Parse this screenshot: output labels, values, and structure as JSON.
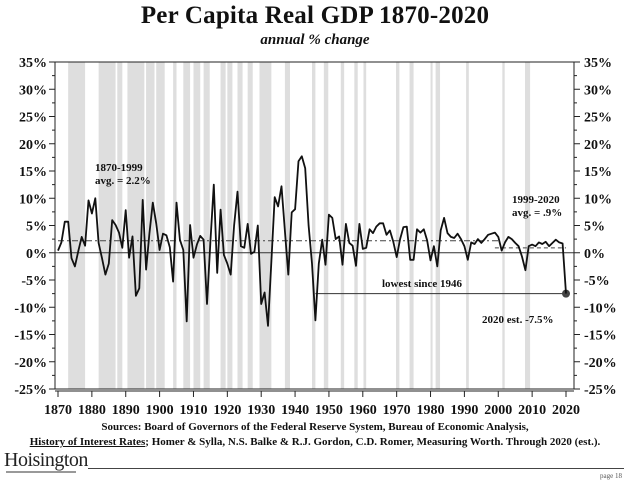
{
  "page": {
    "sources_line1": "Sources: Board of Governors of the Federal Reserve System, Bureau of Economic Analysis,",
    "sources_link": "History of Interest Rates",
    "sources_line2_rest": "; Homer & Sylla, N.S. Balke & R.J. Gordon, C.D. Romer, Measuring Worth. Through 2020 (est.).",
    "logo": "Hoisington",
    "page_number": "page 18"
  },
  "chart_data": {
    "type": "line",
    "title": "Per Capita Real GDP 1870-2020",
    "subtitle": "annual % change",
    "xlabel": "",
    "ylabel": "",
    "xlim": [
      1869,
      2022
    ],
    "ylim": [
      -25,
      35
    ],
    "x_ticks": [
      1870,
      1880,
      1890,
      1900,
      1910,
      1920,
      1930,
      1940,
      1950,
      1960,
      1970,
      1980,
      1990,
      2000,
      2010,
      2020
    ],
    "y_ticks": [
      -25,
      -20,
      -15,
      -10,
      -5,
      0,
      5,
      10,
      15,
      20,
      25,
      30,
      35
    ],
    "y_tick_labels": [
      "-25%",
      "-20%",
      "-15%",
      "-10%",
      "-5%",
      "0%",
      "5%",
      "10%",
      "15%",
      "20%",
      "25%",
      "30%",
      "35%"
    ],
    "y_axis_both_sides": true,
    "grid": false,
    "legend": "none",
    "series": [
      {
        "name": "Per capita real GDP annual % change",
        "x": [
          1870,
          1871,
          1872,
          1873,
          1874,
          1875,
          1876,
          1877,
          1878,
          1879,
          1880,
          1881,
          1882,
          1883,
          1884,
          1885,
          1886,
          1887,
          1888,
          1889,
          1890,
          1891,
          1892,
          1893,
          1894,
          1895,
          1896,
          1897,
          1898,
          1899,
          1900,
          1901,
          1902,
          1903,
          1904,
          1905,
          1906,
          1907,
          1908,
          1909,
          1910,
          1911,
          1912,
          1913,
          1914,
          1915,
          1916,
          1917,
          1918,
          1919,
          1920,
          1921,
          1922,
          1923,
          1924,
          1925,
          1926,
          1927,
          1928,
          1929,
          1930,
          1931,
          1932,
          1933,
          1934,
          1935,
          1936,
          1937,
          1938,
          1939,
          1940,
          1941,
          1942,
          1943,
          1944,
          1945,
          1946,
          1947,
          1948,
          1949,
          1950,
          1951,
          1952,
          1953,
          1954,
          1955,
          1956,
          1957,
          1958,
          1959,
          1960,
          1961,
          1962,
          1963,
          1964,
          1965,
          1966,
          1967,
          1968,
          1969,
          1970,
          1971,
          1972,
          1973,
          1974,
          1975,
          1976,
          1977,
          1978,
          1979,
          1980,
          1981,
          1982,
          1983,
          1984,
          1985,
          1986,
          1987,
          1988,
          1989,
          1990,
          1991,
          1992,
          1993,
          1994,
          1995,
          1996,
          1997,
          1998,
          1999,
          2000,
          2001,
          2002,
          2003,
          2004,
          2005,
          2006,
          2007,
          2008,
          2009,
          2010,
          2011,
          2012,
          2013,
          2014,
          2015,
          2016,
          2017,
          2018,
          2019,
          2020
        ],
        "values": [
          0.4,
          1.9,
          5.7,
          5.7,
          -1.0,
          -2.5,
          0.3,
          2.9,
          1.3,
          9.6,
          7.2,
          10.0,
          1.8,
          -1.0,
          -4.0,
          -2.0,
          6.0,
          5.1,
          3.7,
          0.9,
          7.8,
          -0.9,
          3.0,
          -7.9,
          -6.5,
          9.7,
          -3.1,
          3.5,
          9.2,
          5.4,
          0.5,
          3.5,
          3.2,
          1.0,
          -5.3,
          9.2,
          2.4,
          0.5,
          -12.6,
          5.1,
          -0.9,
          1.5,
          3.1,
          2.4,
          -9.4,
          2.0,
          12.5,
          -3.7,
          7.9,
          -0.4,
          -2.0,
          -4.0,
          5.0,
          11.2,
          1.2,
          0.9,
          5.3,
          -0.2,
          0.2,
          5.0,
          -9.4,
          -7.3,
          -13.4,
          -1.5,
          10.2,
          8.5,
          12.2,
          4.0,
          -4.0,
          7.4,
          8.0,
          16.8,
          17.7,
          15.5,
          5.0,
          -2.0,
          -12.4,
          -2.0,
          2.4,
          -2.2,
          7.0,
          6.4,
          2.5,
          3.0,
          -2.2,
          5.3,
          1.8,
          1.3,
          -2.4,
          5.3,
          0.7,
          0.9,
          4.3,
          3.6,
          4.8,
          5.4,
          5.4,
          3.3,
          4.1,
          2.0,
          -0.8,
          2.5,
          4.7,
          4.8,
          -1.3,
          -1.3,
          4.3,
          3.7,
          4.3,
          2.3,
          -1.4,
          1.2,
          -2.5,
          4.1,
          6.4,
          3.6,
          2.9,
          2.7,
          3.5,
          2.5,
          1.2,
          -1.3,
          1.9,
          1.6,
          2.5,
          1.8,
          2.5,
          3.3,
          3.5,
          3.7,
          2.9,
          0.4,
          1.9,
          2.9,
          2.5,
          1.8,
          1.2,
          -0.7,
          -3.2,
          1.2,
          1.5,
          1.2,
          1.9,
          1.6,
          2.0,
          1.2,
          1.8,
          2.4,
          1.9,
          1.7,
          -7.5
        ]
      }
    ],
    "averages": [
      {
        "label_line1": "1870-1999",
        "label_line2": "avg. = 2.2%",
        "value": 2.2,
        "from": 1870,
        "to": 2000,
        "style": "dash-dot"
      },
      {
        "label_line1": "1999-2020",
        "label_line2": "avg. = .9%",
        "value": 0.9,
        "from": 1999,
        "to": 2020,
        "style": "dashed"
      }
    ],
    "annotations": [
      {
        "text": "lowest since 1946",
        "type": "reference-line",
        "value": -7.5,
        "from": 1946,
        "to": 2020
      },
      {
        "text": "2020 est. -7.5%",
        "type": "point-label",
        "x": 2020,
        "y": -7.5
      }
    ],
    "recession_shading": [
      [
        1873,
        1878
      ],
      [
        1882,
        1887
      ],
      [
        1887.5,
        1889
      ],
      [
        1890.5,
        1895.5
      ],
      [
        1896,
        1898.5
      ],
      [
        1899,
        1901.5
      ],
      [
        1904,
        1905
      ],
      [
        1907,
        1909
      ],
      [
        1910,
        1912
      ],
      [
        1913,
        1914.8
      ],
      [
        1918,
        1919.5
      ],
      [
        1920,
        1921.5
      ],
      [
        1923,
        1924.5
      ],
      [
        1926,
        1927.5
      ],
      [
        1929.5,
        1933
      ],
      [
        1937,
        1938.5
      ],
      [
        1945,
        1946
      ],
      [
        1948.5,
        1949.8
      ],
      [
        1953.5,
        1954.5
      ],
      [
        1957.5,
        1958.5
      ],
      [
        1960.2,
        1961
      ],
      [
        1969.8,
        1970.8
      ],
      [
        1973.8,
        1975
      ],
      [
        1980,
        1980.6
      ],
      [
        1981.5,
        1982.8
      ],
      [
        1990.5,
        1991.3
      ],
      [
        2001.2,
        2001.9
      ],
      [
        2007.9,
        2009.4
      ]
    ]
  }
}
